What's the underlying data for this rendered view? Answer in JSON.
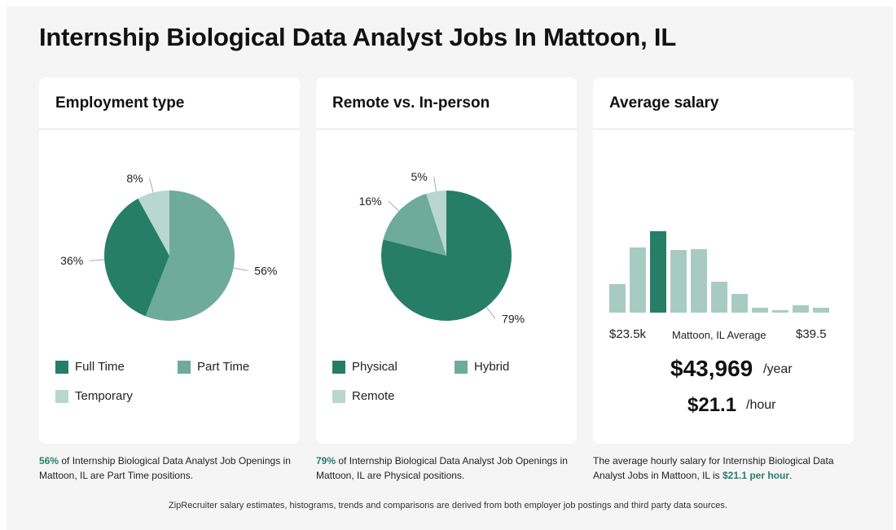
{
  "page": {
    "title": "Internship Biological Data Analyst Jobs In Mattoon, IL",
    "footer": "ZipRecruiter salary estimates, histograms, trends and comparisons are derived from both employer job postings and third party data sources."
  },
  "colors": {
    "dark": "#277e67",
    "medium": "#6eab9a",
    "light": "#b9d7cf",
    "accent_text": "#277e67",
    "background": "#f5f5f5"
  },
  "employment": {
    "title": "Employment type",
    "caption_pct": "56%",
    "caption_rest": " of Internship Biological Data Analyst Job Openings in Mattoon, IL are Part Time positions.",
    "legend": [
      "Full Time",
      "Part Time",
      "Temporary"
    ]
  },
  "remote": {
    "title": "Remote vs. In-person",
    "caption_pct": "79%",
    "caption_rest": " of Internship Biological Data Analyst Job Openings in Mattoon, IL are Physical positions.",
    "legend": [
      "Physical",
      "Hybrid",
      "Remote"
    ]
  },
  "salary": {
    "title": "Average salary",
    "min_label": "$23.5k",
    "mid_label": "Mattoon, IL Average",
    "max_label": "$39.5",
    "yearly": "$43,969",
    "yearly_unit": "/year",
    "hourly": "$21.1",
    "hourly_unit": "/hour",
    "caption_pre": "The average hourly salary for Internship Biological Data Analyst Jobs in Mattoon, IL is ",
    "caption_hl": "$21.1 per hour",
    "caption_post": "."
  },
  "chart_data": [
    {
      "type": "pie",
      "title": "Employment type",
      "labels": [
        "Full Time",
        "Part Time",
        "Temporary"
      ],
      "values": [
        36,
        56,
        8
      ],
      "value_labels": [
        "36%",
        "56%",
        "8%"
      ],
      "colors": [
        "#277e67",
        "#6eab9a",
        "#b9d7cf"
      ]
    },
    {
      "type": "pie",
      "title": "Remote vs. In-person",
      "labels": [
        "Physical",
        "Hybrid",
        "Remote"
      ],
      "values": [
        79,
        16,
        5
      ],
      "value_labels": [
        "79%",
        "16%",
        "5%"
      ],
      "colors": [
        "#277e67",
        "#6eab9a",
        "#b9d7cf"
      ]
    },
    {
      "type": "bar",
      "title": "Average salary",
      "values": [
        35,
        80,
        100,
        77,
        78,
        38,
        23,
        6,
        3,
        9,
        6
      ],
      "highlight_index": 2,
      "highlight_color": "#277e67",
      "bar_color": "#a8cbc1",
      "x_min_label": "$23.5k",
      "x_max_label": "$39.5"
    }
  ]
}
